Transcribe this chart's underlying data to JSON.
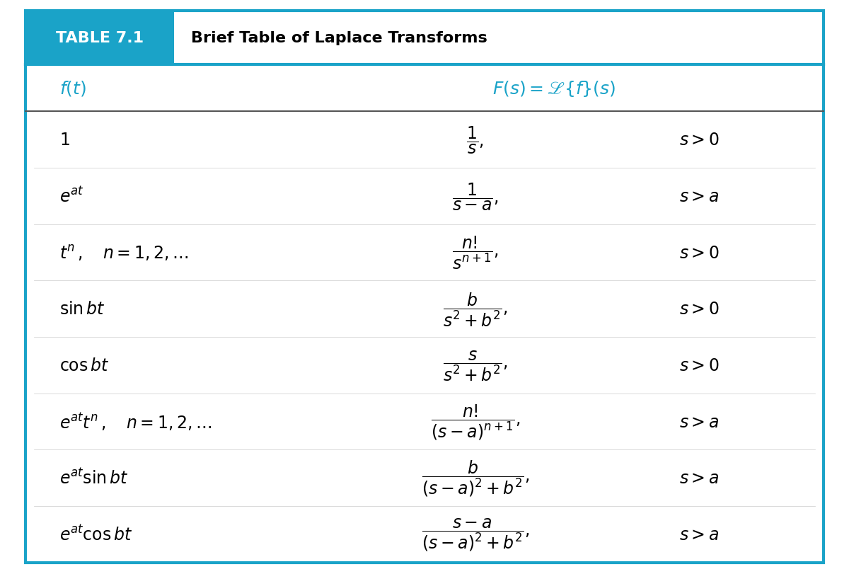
{
  "title_box_color": "#1aa3c8",
  "title_label": "TABLE 7.1",
  "title_text": "Brief Table of Laplace Transforms",
  "header_color": "#1aa3c8",
  "border_color": "#1aa3c8",
  "background_color": "#ffffff",
  "col1_header": "$\\mathit{f}(\\mathit{t})$",
  "col2_header": "$\\mathit{F}(\\mathit{s}) = \\mathscr{L}\\{\\mathit{f}\\}(\\mathit{s})$",
  "rows": [
    {
      "ft": "$1$",
      "Fs": "$\\dfrac{1}{s}$",
      "cond": "$s > 0$"
    },
    {
      "ft": "$e^{at}$",
      "Fs": "$\\dfrac{1}{s - a}$",
      "cond": "$s > a$"
    },
    {
      "ft": "$t^{n}\\,,\\quad n = 1, 2, \\ldots$",
      "Fs": "$\\dfrac{n!}{s^{n+1}}$",
      "cond": "$s > 0$"
    },
    {
      "ft": "$\\sin bt$",
      "Fs": "$\\dfrac{b}{s^{2} + b^{2}}$",
      "cond": "$s > 0$"
    },
    {
      "ft": "$\\cos bt$",
      "Fs": "$\\dfrac{s}{s^{2} + b^{2}}$",
      "cond": "$s > 0$"
    },
    {
      "ft": "$e^{at}t^{n}\\,,\\quad n = 1, 2, \\ldots$",
      "Fs": "$\\dfrac{n!}{(s - a)^{n+1}}$",
      "cond": "$s > a$"
    },
    {
      "ft": "$e^{at} \\sin bt$",
      "Fs": "$\\dfrac{b}{(s - a)^{2} + b^{2}}$",
      "cond": "$s > a$"
    },
    {
      "ft": "$e^{at} \\cos bt$",
      "Fs": "$\\dfrac{s - a}{(s - a)^{2} + b^{2}}$",
      "cond": "$s > a$"
    }
  ],
  "fig_width": 12.0,
  "fig_height": 8.12,
  "dpi": 100
}
